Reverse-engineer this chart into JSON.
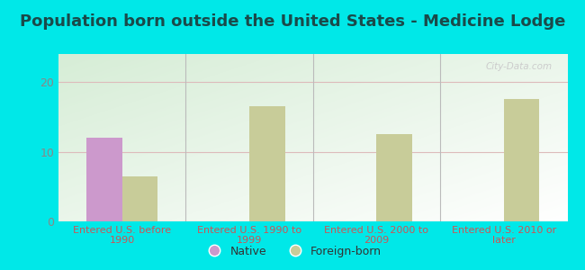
{
  "title": "Population born outside the United States - Medicine Lodge",
  "title_fontsize": 13,
  "title_color": "#1a4a4a",
  "groups": [
    "Entered U.S. before\n1990",
    "Entered U.S. 1990 to\n1999",
    "Entered U.S. 2000 to\n2009",
    "Entered U.S. 2010 or\nlater"
  ],
  "native_values": [
    12,
    0,
    0,
    0
  ],
  "foreign_values": [
    6.5,
    16.5,
    12.5,
    17.5
  ],
  "native_color": "#cc99cc",
  "foreign_color": "#c8cc99",
  "bar_width": 0.28,
  "ylim": [
    0,
    24
  ],
  "yticks": [
    0,
    10,
    20
  ],
  "figure_bg": "#00e8e8",
  "plot_bg_color1": "#d6ecd6",
  "plot_bg_color2": "#ffffff",
  "grid_color": "#ddbbbb",
  "watermark": "City-Data.com",
  "legend_native": "Native",
  "legend_foreign": "Foreign-born",
  "xlabel_color": "#cc5555",
  "tick_color": "#888888",
  "figsize": [
    6.5,
    3.0
  ],
  "dpi": 100
}
